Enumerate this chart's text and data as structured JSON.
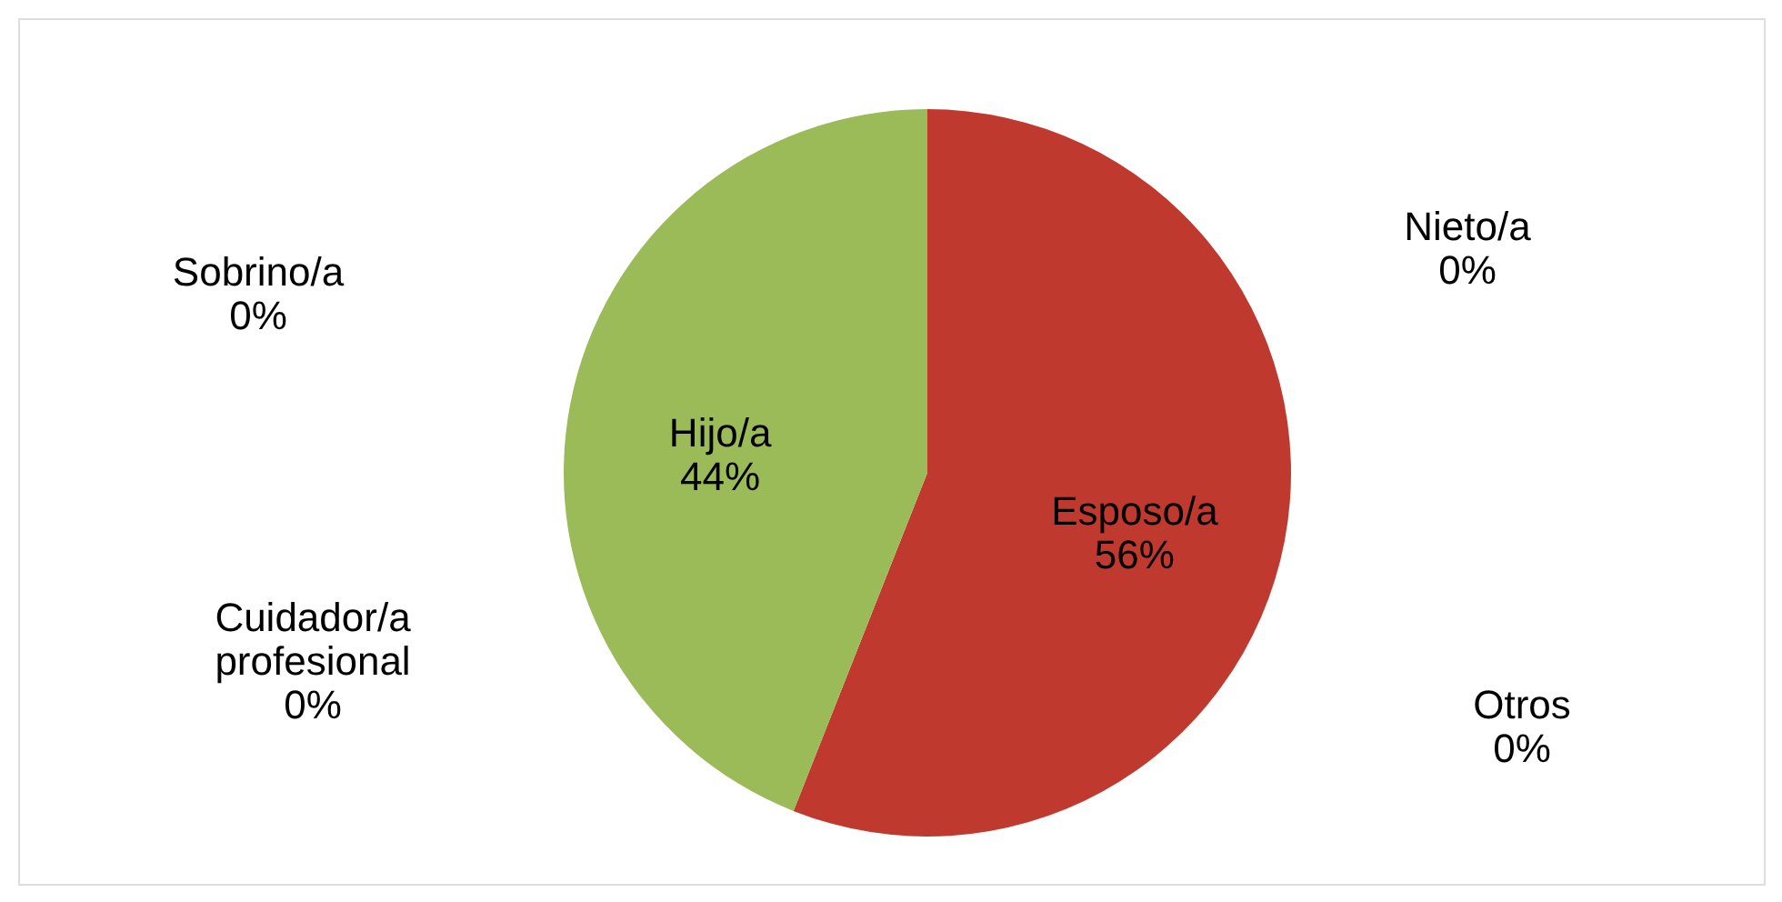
{
  "chart_data": {
    "type": "pie",
    "categories": [
      "Esposo/a",
      "Hijo/a",
      "Sobrino/a",
      "Cuidador/a profesional",
      "Otros",
      "Nieto/a"
    ],
    "values": [
      56,
      44,
      0,
      0,
      0,
      0
    ],
    "value_labels": [
      "56%",
      "44%",
      "0%",
      "0%",
      "0%",
      "0%"
    ],
    "colors": [
      "#c0392f",
      "#9bbb59",
      "#4f81bd",
      "#8064a2",
      "#4bacc6",
      "#f79646"
    ],
    "legend": false
  }
}
